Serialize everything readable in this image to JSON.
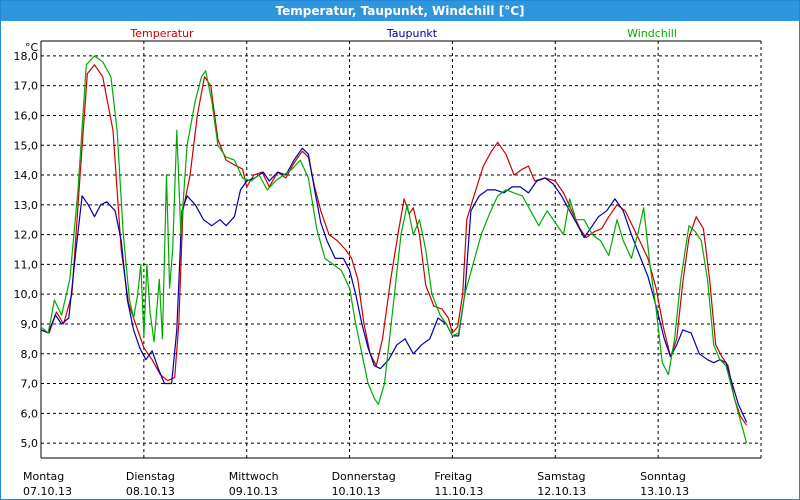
{
  "window": {
    "title": "Temperatur, Taupunkt, Windchill [°C]"
  },
  "colors": {
    "temperatur": "#cc0000",
    "taupunkt": "#0000aa",
    "windchill": "#00aa00",
    "grid": "#000000",
    "titlebar": "#2f96dd"
  },
  "chart_data": {
    "type": "line",
    "title": "Temperatur, Taupunkt, Windchill [°C]",
    "ylabel": "°C",
    "xlabel": "",
    "ylim": [
      4.5,
      18.5
    ],
    "xlim": [
      0,
      7
    ],
    "y_ticks": [
      "18,0",
      "17,0",
      "16,0",
      "15,0",
      "14,0",
      "13,0",
      "12,0",
      "11,0",
      "10,0",
      "9,0",
      "8,0",
      "7,0",
      "6,0",
      "5,0"
    ],
    "y_tick_values": [
      18,
      17,
      16,
      15,
      14,
      13,
      12,
      11,
      10,
      9,
      8,
      7,
      6,
      5
    ],
    "grid": true,
    "legend_placement": "top",
    "x_ticks": [
      {
        "day": "Montag",
        "date": "07.10.13"
      },
      {
        "day": "Dienstag",
        "date": "08.10.13"
      },
      {
        "day": "Mittwoch",
        "date": "09.10.13"
      },
      {
        "day": "Donnerstag",
        "date": "10.10.13"
      },
      {
        "day": "Freitag",
        "date": "11.10.13"
      },
      {
        "day": "Samstag",
        "date": "12.10.13"
      },
      {
        "day": "Sonntag",
        "date": "13.10.13"
      }
    ],
    "series": [
      {
        "name": "Temperatur",
        "color": "#cc0000",
        "points": [
          [
            0,
            8.8
          ],
          [
            0.08,
            8.7
          ],
          [
            0.15,
            9.4
          ],
          [
            0.22,
            9.0
          ],
          [
            0.3,
            10.0
          ],
          [
            0.38,
            14.0
          ],
          [
            0.45,
            17.4
          ],
          [
            0.52,
            17.7
          ],
          [
            0.6,
            17.3
          ],
          [
            0.7,
            15.5
          ],
          [
            0.78,
            11.5
          ],
          [
            0.85,
            9.7
          ],
          [
            0.92,
            9.0
          ],
          [
            1.0,
            8.2
          ],
          [
            1.08,
            7.8
          ],
          [
            1.16,
            7.3
          ],
          [
            1.23,
            7.1
          ],
          [
            1.3,
            7.2
          ],
          [
            1.34,
            9.0
          ],
          [
            1.38,
            12.8
          ],
          [
            1.45,
            14.0
          ],
          [
            1.52,
            16.0
          ],
          [
            1.59,
            17.3
          ],
          [
            1.65,
            17.0
          ],
          [
            1.72,
            15.2
          ],
          [
            1.8,
            14.5
          ],
          [
            1.9,
            14.3
          ],
          [
            1.96,
            14.2
          ],
          [
            2.0,
            13.6
          ],
          [
            2.07,
            14.0
          ],
          [
            2.15,
            14.1
          ],
          [
            2.22,
            13.6
          ],
          [
            2.3,
            14.1
          ],
          [
            2.38,
            13.9
          ],
          [
            2.46,
            14.4
          ],
          [
            2.54,
            14.8
          ],
          [
            2.6,
            14.6
          ],
          [
            2.66,
            13.6
          ],
          [
            2.72,
            12.8
          ],
          [
            2.8,
            12.0
          ],
          [
            2.88,
            11.8
          ],
          [
            2.96,
            11.5
          ],
          [
            3.02,
            11.2
          ],
          [
            3.08,
            10.5
          ],
          [
            3.14,
            9.0
          ],
          [
            3.2,
            8.0
          ],
          [
            3.26,
            7.6
          ],
          [
            3.32,
            8.5
          ],
          [
            3.4,
            10.5
          ],
          [
            3.47,
            12.0
          ],
          [
            3.53,
            13.2
          ],
          [
            3.58,
            12.7
          ],
          [
            3.62,
            12.9
          ],
          [
            3.68,
            12.0
          ],
          [
            3.74,
            10.3
          ],
          [
            3.82,
            9.6
          ],
          [
            3.9,
            9.5
          ],
          [
            3.96,
            9.2
          ],
          [
            4.0,
            8.7
          ],
          [
            4.05,
            8.9
          ],
          [
            4.1,
            10.0
          ],
          [
            4.14,
            12.5
          ],
          [
            4.2,
            13.2
          ],
          [
            4.3,
            14.3
          ],
          [
            4.38,
            14.8
          ],
          [
            4.44,
            15.1
          ],
          [
            4.52,
            14.7
          ],
          [
            4.6,
            14.0
          ],
          [
            4.68,
            14.2
          ],
          [
            4.74,
            14.3
          ],
          [
            4.8,
            13.8
          ],
          [
            4.9,
            13.9
          ],
          [
            5.0,
            13.8
          ],
          [
            5.08,
            13.4
          ],
          [
            5.16,
            12.8
          ],
          [
            5.24,
            12.2
          ],
          [
            5.3,
            11.9
          ],
          [
            5.38,
            12.1
          ],
          [
            5.45,
            12.2
          ],
          [
            5.52,
            12.6
          ],
          [
            5.6,
            13.0
          ],
          [
            5.68,
            12.8
          ],
          [
            5.75,
            12.3
          ],
          [
            5.82,
            11.8
          ],
          [
            5.9,
            11.2
          ],
          [
            5.98,
            10.2
          ],
          [
            6.05,
            8.9
          ],
          [
            6.12,
            7.9
          ],
          [
            6.18,
            8.5
          ],
          [
            6.24,
            10.4
          ],
          [
            6.3,
            11.9
          ],
          [
            6.37,
            12.6
          ],
          [
            6.44,
            12.2
          ],
          [
            6.5,
            10.5
          ],
          [
            6.56,
            8.3
          ],
          [
            6.62,
            7.9
          ],
          [
            6.68,
            7.6
          ],
          [
            6.74,
            6.5
          ],
          [
            6.8,
            5.9
          ],
          [
            6.86,
            5.6
          ]
        ]
      },
      {
        "name": "Taupunkt",
        "color": "#0000aa",
        "points": [
          [
            0,
            8.8
          ],
          [
            0.07,
            8.7
          ],
          [
            0.14,
            9.3
          ],
          [
            0.2,
            9.0
          ],
          [
            0.27,
            9.2
          ],
          [
            0.34,
            11.5
          ],
          [
            0.4,
            13.3
          ],
          [
            0.46,
            13.0
          ],
          [
            0.52,
            12.6
          ],
          [
            0.58,
            13.0
          ],
          [
            0.64,
            13.1
          ],
          [
            0.72,
            12.8
          ],
          [
            0.78,
            11.8
          ],
          [
            0.84,
            9.8
          ],
          [
            0.9,
            8.8
          ],
          [
            0.96,
            8.2
          ],
          [
            1.02,
            7.8
          ],
          [
            1.08,
            8.1
          ],
          [
            1.14,
            7.5
          ],
          [
            1.2,
            7.0
          ],
          [
            1.27,
            7.0
          ],
          [
            1.32,
            8.8
          ],
          [
            1.37,
            12.8
          ],
          [
            1.42,
            13.3
          ],
          [
            1.5,
            13.0
          ],
          [
            1.58,
            12.5
          ],
          [
            1.66,
            12.3
          ],
          [
            1.74,
            12.5
          ],
          [
            1.8,
            12.3
          ],
          [
            1.88,
            12.6
          ],
          [
            1.94,
            13.5
          ],
          [
            2.0,
            13.8
          ],
          [
            2.08,
            13.9
          ],
          [
            2.16,
            14.1
          ],
          [
            2.22,
            13.8
          ],
          [
            2.3,
            14.1
          ],
          [
            2.38,
            14.0
          ],
          [
            2.46,
            14.5
          ],
          [
            2.54,
            14.9
          ],
          [
            2.6,
            14.7
          ],
          [
            2.66,
            13.5
          ],
          [
            2.72,
            12.4
          ],
          [
            2.78,
            11.8
          ],
          [
            2.86,
            11.2
          ],
          [
            2.94,
            11.2
          ],
          [
            3.0,
            10.8
          ],
          [
            3.06,
            10.0
          ],
          [
            3.12,
            9.0
          ],
          [
            3.18,
            8.2
          ],
          [
            3.24,
            7.6
          ],
          [
            3.3,
            7.5
          ],
          [
            3.38,
            7.8
          ],
          [
            3.46,
            8.3
          ],
          [
            3.54,
            8.5
          ],
          [
            3.62,
            8.0
          ],
          [
            3.7,
            8.3
          ],
          [
            3.78,
            8.5
          ],
          [
            3.86,
            9.2
          ],
          [
            3.94,
            9.0
          ],
          [
            4.0,
            8.6
          ],
          [
            4.06,
            8.6
          ],
          [
            4.12,
            10.0
          ],
          [
            4.18,
            12.8
          ],
          [
            4.26,
            13.3
          ],
          [
            4.34,
            13.5
          ],
          [
            4.42,
            13.5
          ],
          [
            4.5,
            13.4
          ],
          [
            4.58,
            13.6
          ],
          [
            4.66,
            13.6
          ],
          [
            4.74,
            13.4
          ],
          [
            4.82,
            13.8
          ],
          [
            4.9,
            13.9
          ],
          [
            4.98,
            13.7
          ],
          [
            5.06,
            13.3
          ],
          [
            5.14,
            12.8
          ],
          [
            5.22,
            12.3
          ],
          [
            5.28,
            11.9
          ],
          [
            5.34,
            12.2
          ],
          [
            5.42,
            12.6
          ],
          [
            5.5,
            12.8
          ],
          [
            5.58,
            13.2
          ],
          [
            5.66,
            12.8
          ],
          [
            5.74,
            12.0
          ],
          [
            5.82,
            11.3
          ],
          [
            5.9,
            10.6
          ],
          [
            5.98,
            9.6
          ],
          [
            6.06,
            8.5
          ],
          [
            6.12,
            7.9
          ],
          [
            6.18,
            8.3
          ],
          [
            6.24,
            8.8
          ],
          [
            6.32,
            8.7
          ],
          [
            6.4,
            8.0
          ],
          [
            6.48,
            7.8
          ],
          [
            6.54,
            7.7
          ],
          [
            6.6,
            7.8
          ],
          [
            6.66,
            7.7
          ],
          [
            6.72,
            7.0
          ],
          [
            6.78,
            6.3
          ],
          [
            6.86,
            5.7
          ]
        ]
      },
      {
        "name": "Windchill",
        "color": "#00aa00",
        "points": [
          [
            0,
            8.9
          ],
          [
            0.07,
            8.7
          ],
          [
            0.13,
            9.8
          ],
          [
            0.2,
            9.3
          ],
          [
            0.28,
            10.5
          ],
          [
            0.36,
            13.5
          ],
          [
            0.44,
            17.7
          ],
          [
            0.52,
            18.0
          ],
          [
            0.6,
            17.8
          ],
          [
            0.68,
            17.3
          ],
          [
            0.74,
            15.5
          ],
          [
            0.8,
            12.0
          ],
          [
            0.86,
            9.8
          ],
          [
            0.9,
            9.2
          ],
          [
            0.94,
            10.0
          ],
          [
            0.97,
            11.0
          ],
          [
            1.0,
            8.6
          ],
          [
            1.03,
            11.0
          ],
          [
            1.06,
            9.4
          ],
          [
            1.1,
            8.4
          ],
          [
            1.15,
            10.5
          ],
          [
            1.18,
            8.5
          ],
          [
            1.22,
            14.0
          ],
          [
            1.25,
            10.2
          ],
          [
            1.28,
            11.5
          ],
          [
            1.32,
            15.5
          ],
          [
            1.36,
            12.0
          ],
          [
            1.42,
            15.0
          ],
          [
            1.5,
            16.5
          ],
          [
            1.56,
            17.3
          ],
          [
            1.6,
            17.5
          ],
          [
            1.66,
            16.5
          ],
          [
            1.72,
            15.0
          ],
          [
            1.8,
            14.6
          ],
          [
            1.88,
            14.5
          ],
          [
            1.96,
            13.9
          ],
          [
            2.04,
            13.8
          ],
          [
            2.12,
            14.0
          ],
          [
            2.2,
            13.5
          ],
          [
            2.28,
            13.8
          ],
          [
            2.36,
            14.0
          ],
          [
            2.44,
            14.2
          ],
          [
            2.52,
            14.5
          ],
          [
            2.6,
            13.9
          ],
          [
            2.68,
            12.2
          ],
          [
            2.76,
            11.2
          ],
          [
            2.84,
            11.0
          ],
          [
            2.92,
            10.8
          ],
          [
            3.0,
            10.2
          ],
          [
            3.06,
            9.0
          ],
          [
            3.12,
            8.0
          ],
          [
            3.18,
            7.0
          ],
          [
            3.24,
            6.5
          ],
          [
            3.28,
            6.3
          ],
          [
            3.34,
            7.0
          ],
          [
            3.42,
            9.5
          ],
          [
            3.5,
            12.0
          ],
          [
            3.56,
            13.0
          ],
          [
            3.62,
            12.0
          ],
          [
            3.68,
            12.5
          ],
          [
            3.74,
            11.5
          ],
          [
            3.8,
            10.0
          ],
          [
            3.88,
            9.3
          ],
          [
            3.94,
            9.0
          ],
          [
            4.0,
            8.6
          ],
          [
            4.06,
            8.7
          ],
          [
            4.12,
            10.0
          ],
          [
            4.2,
            11.0
          ],
          [
            4.28,
            12.0
          ],
          [
            4.36,
            12.7
          ],
          [
            4.44,
            13.3
          ],
          [
            4.52,
            13.5
          ],
          [
            4.6,
            13.4
          ],
          [
            4.68,
            13.3
          ],
          [
            4.76,
            12.8
          ],
          [
            4.84,
            12.3
          ],
          [
            4.92,
            12.8
          ],
          [
            5.0,
            12.4
          ],
          [
            5.08,
            12.0
          ],
          [
            5.14,
            13.2
          ],
          [
            5.2,
            12.5
          ],
          [
            5.28,
            12.5
          ],
          [
            5.36,
            12.0
          ],
          [
            5.44,
            11.8
          ],
          [
            5.52,
            11.3
          ],
          [
            5.6,
            12.5
          ],
          [
            5.66,
            11.8
          ],
          [
            5.74,
            11.2
          ],
          [
            5.8,
            12.0
          ],
          [
            5.86,
            12.9
          ],
          [
            5.92,
            11.0
          ],
          [
            5.98,
            9.5
          ],
          [
            6.04,
            7.7
          ],
          [
            6.1,
            7.3
          ],
          [
            6.16,
            8.5
          ],
          [
            6.22,
            10.5
          ],
          [
            6.3,
            12.3
          ],
          [
            6.36,
            12.1
          ],
          [
            6.42,
            11.8
          ],
          [
            6.48,
            10.5
          ],
          [
            6.54,
            8.3
          ],
          [
            6.6,
            7.8
          ],
          [
            6.66,
            7.6
          ],
          [
            6.72,
            6.8
          ],
          [
            6.78,
            6.0
          ],
          [
            6.86,
            5.0
          ]
        ]
      }
    ]
  }
}
